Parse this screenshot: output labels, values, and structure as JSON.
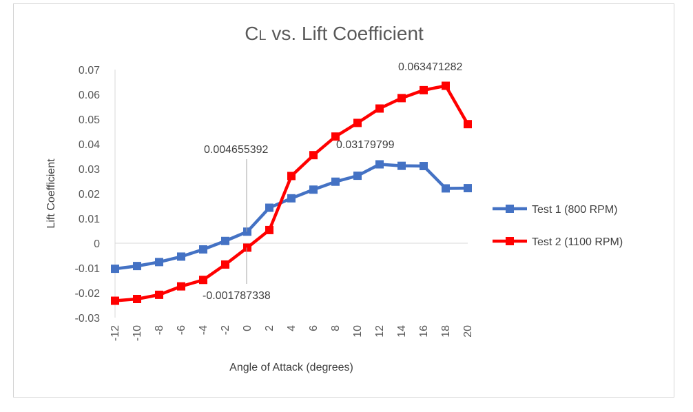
{
  "chart_data": {
    "type": "line",
    "title": "CL vs. Lift Coefficient",
    "xlabel": "Angle of Attack (degrees)",
    "ylabel": "Lift Coefficient",
    "x": [
      -12,
      -10,
      -8,
      -6,
      -4,
      -2,
      0,
      2,
      4,
      6,
      8,
      10,
      12,
      14,
      16,
      18,
      20
    ],
    "ylim": [
      -0.03,
      0.07
    ],
    "yticks": [
      "-0.03",
      "-0.02",
      "-0.01",
      "0",
      "0.01",
      "0.02",
      "0.03",
      "0.04",
      "0.05",
      "0.06",
      "0.07"
    ],
    "xticks": [
      "-12",
      "-10",
      "-8",
      "-6",
      "-4",
      "-2",
      "0",
      "2",
      "4",
      "6",
      "8",
      "10",
      "12",
      "14",
      "16",
      "18",
      "20"
    ],
    "legend_position": "right",
    "grid": false,
    "series": [
      {
        "name": "Test 1 (800 RPM)",
        "color": "#4472c4",
        "marker": "square",
        "values": [
          -0.0103,
          -0.0092,
          -0.0076,
          -0.0054,
          -0.0025,
          0.0009,
          0.004655392,
          0.0143,
          0.0181,
          0.0216,
          0.0248,
          0.0272,
          0.03179799,
          0.0312,
          0.0311,
          0.0221,
          0.0222
        ]
      },
      {
        "name": "Test 2 (1100 RPM)",
        "color": "#ff0000",
        "marker": "square",
        "values": [
          -0.0232,
          -0.0225,
          -0.0208,
          -0.0174,
          -0.0148,
          -0.0086,
          -0.001787338,
          0.0053,
          0.0271,
          0.0355,
          0.043,
          0.0485,
          0.0543,
          0.0585,
          0.0617,
          0.063471282,
          0.048
        ]
      }
    ],
    "annotations": [
      {
        "text": "0.004655392",
        "series": 0,
        "x": 0
      },
      {
        "text": "-0.001787338",
        "series": 1,
        "x": 0
      },
      {
        "text": "0.03179799",
        "series": 0,
        "x": 12
      },
      {
        "text": "0.063471282",
        "series": 1,
        "x": 18
      }
    ]
  }
}
